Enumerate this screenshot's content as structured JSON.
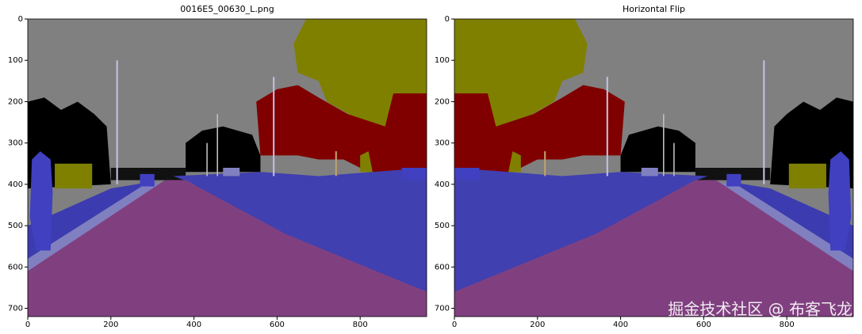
{
  "chart_data": [
    {
      "type": "image",
      "title": "0016E5_00630_L.png",
      "flip": false,
      "xlim": [
        0,
        960
      ],
      "ylim": [
        720,
        0
      ],
      "xticks": [
        0,
        200,
        400,
        600,
        800
      ],
      "yticks": [
        0,
        100,
        200,
        300,
        400,
        500,
        600,
        700
      ]
    },
    {
      "type": "image",
      "title": "Horizontal Flip",
      "flip": true,
      "xlim": [
        0,
        960
      ],
      "ylim": [
        720,
        0
      ],
      "xticks": [
        0,
        200,
        400,
        600,
        800
      ],
      "yticks": [
        0,
        100,
        200,
        300,
        400,
        500,
        600,
        700
      ]
    }
  ],
  "watermark": "掘金技术社区 @ 布客飞龙"
}
